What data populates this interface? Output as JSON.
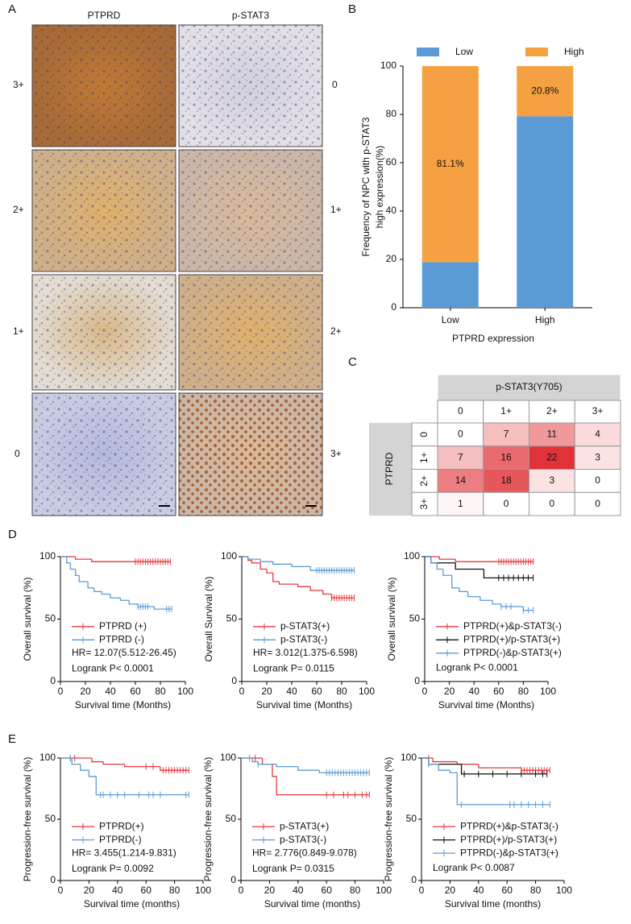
{
  "panel_labels": [
    "A",
    "B",
    "C",
    "D",
    "E"
  ],
  "panel_a": {
    "columns": [
      "PTPRD",
      "p-STAT3"
    ],
    "left_scores": [
      "3+",
      "2+",
      "1+",
      "0"
    ],
    "right_scores": [
      "0",
      "1+",
      "2+",
      "3+"
    ]
  },
  "chart_data": [
    {
      "type": "stacked_bar",
      "categories": [
        "Low",
        "High"
      ],
      "series": [
        {
          "name": "Low",
          "color": "#5b9bd5",
          "values": [
            18.9,
            79.2
          ]
        },
        {
          "name": "High",
          "color": "#f5a142",
          "values": [
            81.1,
            20.8
          ],
          "value_labels": [
            "81.1%",
            "20.8%"
          ]
        }
      ],
      "ylim": [
        0,
        100
      ],
      "yticks": [
        0,
        20,
        40,
        60,
        80,
        100
      ],
      "y_label": [
        "Frequency of NPC with p-STAT3",
        "high expression(%)"
      ],
      "x_label": "PTPRD expression"
    },
    {
      "type": "heatmap",
      "title": "p-STAT3(Y705)",
      "y_label": "PTPRD",
      "x_categories": [
        "0",
        "1+",
        "2+",
        "3+"
      ],
      "y_categories": [
        "0",
        "1+",
        "2+",
        "3+"
      ],
      "values": [
        [
          0,
          7,
          11,
          4
        ],
        [
          7,
          16,
          22,
          3
        ],
        [
          14,
          18,
          3,
          0
        ],
        [
          1,
          0,
          0,
          0
        ]
      ]
    },
    {
      "type": "km",
      "y_label": "Overall survival (%)",
      "x_label": "Survival time (Months)",
      "xlim": [
        0,
        100
      ],
      "xticks": [
        0,
        20,
        40,
        60,
        80,
        100
      ],
      "ylim": [
        0,
        100
      ],
      "yticks": [
        0,
        50,
        100
      ],
      "series": [
        {
          "name": "PTPRD (+)",
          "color": "#e8383d",
          "x": [
            0,
            12,
            25
          ],
          "values": [
            100,
            98,
            96
          ],
          "censored": [
            60,
            62,
            64,
            66,
            68,
            70,
            72,
            74,
            76,
            78,
            80,
            82,
            84,
            86,
            88
          ]
        },
        {
          "name": "PTPRD (-)",
          "color": "#5b9bd5",
          "x": [
            0,
            5,
            8,
            12,
            15,
            22,
            27,
            33,
            40,
            48,
            55,
            62,
            75
          ],
          "values": [
            100,
            95,
            90,
            85,
            80,
            75,
            72,
            70,
            67,
            65,
            62,
            60,
            58
          ],
          "censored": [
            62,
            64,
            66,
            68,
            70,
            85,
            87,
            89
          ]
        }
      ],
      "annotations": [
        "HR= 12.07(5.512-26.45)",
        "Logrank P< 0.0001"
      ]
    },
    {
      "type": "km",
      "y_label": "Overall Survival (%)",
      "x_label": "Survival time (Months)",
      "xlim": [
        0,
        100
      ],
      "xticks": [
        0,
        20,
        40,
        60,
        80,
        100
      ],
      "ylim": [
        0,
        100
      ],
      "yticks": [
        0,
        50,
        100
      ],
      "series": [
        {
          "name": "p-STAT3(+)",
          "color": "#e8383d",
          "x": [
            0,
            5,
            8,
            15,
            20,
            25,
            30,
            45,
            55,
            65,
            72
          ],
          "values": [
            100,
            97,
            95,
            90,
            87,
            80,
            78,
            76,
            73,
            70,
            67
          ],
          "censored": [
            72,
            74,
            76,
            78,
            80,
            82,
            84,
            86,
            88,
            90
          ]
        },
        {
          "name": "p-STAT3(-)",
          "color": "#5b9bd5",
          "x": [
            0,
            5,
            15,
            25,
            40,
            55
          ],
          "values": [
            100,
            98,
            96,
            94,
            92,
            89
          ],
          "censored": [
            60,
            62,
            64,
            66,
            68,
            70,
            72,
            74,
            76,
            78,
            80,
            82,
            84,
            86,
            88,
            90
          ]
        }
      ],
      "annotations": [
        "HR= 3.012(1.375-6.598)",
        "Logrank P= 0.0115"
      ]
    },
    {
      "type": "km",
      "y_label": "Overall survival (%)",
      "x_label": "Survival time (Months)",
      "xlim": [
        0,
        100
      ],
      "xticks": [
        0,
        20,
        40,
        60,
        80,
        100
      ],
      "ylim": [
        0,
        100
      ],
      "yticks": [
        0,
        50,
        100
      ],
      "series": [
        {
          "name": "PTPRD(+)&p-STAT3(-)",
          "color": "#e8383d",
          "x": [
            0,
            12,
            25
          ],
          "values": [
            100,
            98,
            96
          ],
          "censored": [
            60,
            62,
            64,
            66,
            68,
            70,
            72,
            74,
            76,
            78,
            80,
            82,
            84,
            86,
            88
          ]
        },
        {
          "name": "PTPRD(+)/p-STAT3(+)",
          "color": "#111111",
          "x": [
            0,
            5,
            25,
            48
          ],
          "values": [
            100,
            95,
            90,
            83
          ],
          "censored": [
            60,
            64,
            68,
            72,
            76,
            80,
            84,
            88
          ]
        },
        {
          "name": "PTPRD(-)&p-STAT3(+)",
          "color": "#5b9bd5",
          "x": [
            0,
            5,
            10,
            15,
            22,
            28,
            35,
            45,
            55,
            62,
            80
          ],
          "values": [
            100,
            95,
            90,
            85,
            75,
            72,
            68,
            65,
            62,
            60,
            57
          ],
          "censored": [
            62,
            66,
            70,
            80,
            84,
            88
          ]
        }
      ],
      "annotations": [
        "Logrank P< 0.0001"
      ]
    },
    {
      "type": "km",
      "y_label": "Progression-free survival (%)",
      "x_label": "Survival time (months)",
      "xlim": [
        0,
        100
      ],
      "xticks": [
        0,
        20,
        40,
        60,
        80,
        100
      ],
      "ylim": [
        0,
        100
      ],
      "yticks": [
        0,
        50,
        100
      ],
      "series": [
        {
          "name": "PTPRD(+)",
          "color": "#e8383d",
          "x": [
            0,
            22,
            30,
            45,
            70
          ],
          "values": [
            100,
            97,
            95,
            93,
            90
          ],
          "censored": [
            7,
            10,
            60,
            65,
            72,
            74,
            76,
            78,
            80,
            82,
            84,
            86,
            88,
            90
          ]
        },
        {
          "name": "PTPRD(-)",
          "color": "#5b9bd5",
          "x": [
            0,
            8,
            14,
            20,
            25
          ],
          "values": [
            100,
            95,
            90,
            85,
            70
          ],
          "censored": [
            7,
            28,
            30,
            35,
            40,
            45,
            55,
            62,
            65,
            70,
            88,
            90
          ]
        }
      ],
      "annotations": [
        "HR= 3.455(1.214-9.831)",
        "Logrank P= 0.0092"
      ]
    },
    {
      "type": "km",
      "y_label": "Progression-free survival (%)",
      "x_label": "Survival time (months)",
      "xlim": [
        0,
        100
      ],
      "xticks": [
        0,
        20,
        40,
        60,
        80,
        100
      ],
      "ylim": [
        0,
        100
      ],
      "yticks": [
        0,
        50,
        100
      ],
      "series": [
        {
          "name": "p-STAT3(+)",
          "color": "#e8383d",
          "x": [
            0,
            15,
            22,
            25
          ],
          "values": [
            100,
            95,
            85,
            70
          ],
          "censored": [
            10,
            60,
            65,
            72,
            75,
            80,
            85,
            88,
            90
          ]
        },
        {
          "name": "p-STAT3(-)",
          "color": "#5b9bd5",
          "x": [
            0,
            8,
            12,
            25,
            40,
            55
          ],
          "values": [
            100,
            97,
            95,
            93,
            90,
            88
          ],
          "censored": [
            6,
            12,
            60,
            62,
            64,
            66,
            68,
            70,
            72,
            74,
            76,
            78,
            80,
            82,
            84,
            86,
            88,
            90
          ]
        }
      ],
      "annotations": [
        "HR= 2.776(0.849-9.078)",
        "Logrank P= 0.0315"
      ]
    },
    {
      "type": "km",
      "y_label": "Progression-free survival (%)",
      "x_label": "Survival time (months)",
      "xlim": [
        0,
        100
      ],
      "xticks": [
        0,
        20,
        40,
        60,
        80,
        100
      ],
      "ylim": [
        0,
        100
      ],
      "yticks": [
        0,
        50,
        100
      ],
      "series": [
        {
          "name": "PTPRD(+)&p-STAT3(-)",
          "color": "#e8383d",
          "x": [
            0,
            8,
            25,
            40,
            70
          ],
          "values": [
            100,
            97,
            95,
            92,
            90
          ],
          "censored": [
            5,
            70,
            72,
            74,
            76,
            78,
            80,
            82,
            84,
            86,
            88,
            90
          ]
        },
        {
          "name": "PTPRD(+)/p-STAT3(+)",
          "color": "#111111",
          "x": [
            0,
            5,
            28
          ],
          "values": [
            100,
            95,
            87
          ],
          "censored": [
            30,
            40,
            50,
            60,
            70,
            80,
            85,
            88
          ]
        },
        {
          "name": "PTPRD(-)&p-STAT3(+)",
          "color": "#5b9bd5",
          "x": [
            0,
            5,
            12,
            20,
            25
          ],
          "values": [
            100,
            95,
            90,
            88,
            62
          ],
          "censored": [
            5,
            28,
            62,
            65,
            70,
            75,
            80,
            85,
            90
          ]
        }
      ],
      "annotations": [
        "Logrank P< 0.0087"
      ]
    }
  ]
}
